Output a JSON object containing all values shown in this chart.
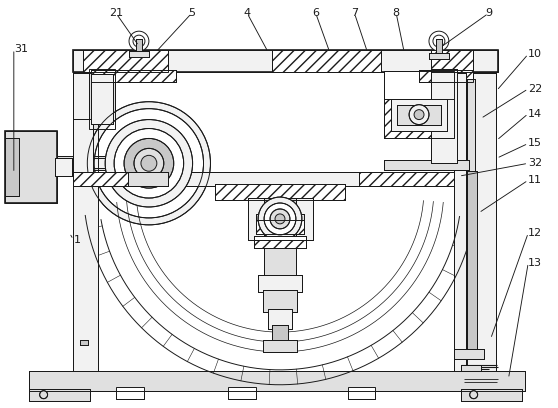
{
  "bg": "#ffffff",
  "lc": "#1a1a1a",
  "lw": 0.7,
  "lw_thick": 1.2,
  "fill_w": "#ffffff",
  "fill_l": "#f2f2f2",
  "fill_m": "#e0e0e0",
  "fill_d": "#c8c8c8",
  "fill_dd": "#aaaaaa",
  "figsize": [
    5.58,
    4.08
  ],
  "dpi": 100,
  "label_fs": 8.0,
  "annotations": [
    [
      "1",
      72,
      168,
      68,
      175,
      "left"
    ],
    [
      "4",
      247,
      396,
      268,
      357,
      "center"
    ],
    [
      "5",
      191,
      396,
      155,
      357,
      "center"
    ],
    [
      "6",
      316,
      396,
      330,
      357,
      "center"
    ],
    [
      "7",
      355,
      396,
      368,
      357,
      "center"
    ],
    [
      "8",
      397,
      396,
      405,
      357,
      "center"
    ],
    [
      "9",
      490,
      396,
      442,
      362,
      "center"
    ],
    [
      "10",
      530,
      355,
      498,
      318,
      "left"
    ],
    [
      "11",
      530,
      228,
      480,
      195,
      "left"
    ],
    [
      "12",
      530,
      175,
      492,
      68,
      "left"
    ],
    [
      "13",
      530,
      145,
      510,
      28,
      "left"
    ],
    [
      "14",
      530,
      295,
      498,
      268,
      "left"
    ],
    [
      "15",
      530,
      265,
      498,
      250,
      "left"
    ],
    [
      "21",
      115,
      396,
      138,
      363,
      "center"
    ],
    [
      "22",
      530,
      320,
      482,
      290,
      "left"
    ],
    [
      "31",
      12,
      360,
      12,
      235,
      "left"
    ],
    [
      "32",
      530,
      245,
      460,
      232,
      "left"
    ]
  ]
}
